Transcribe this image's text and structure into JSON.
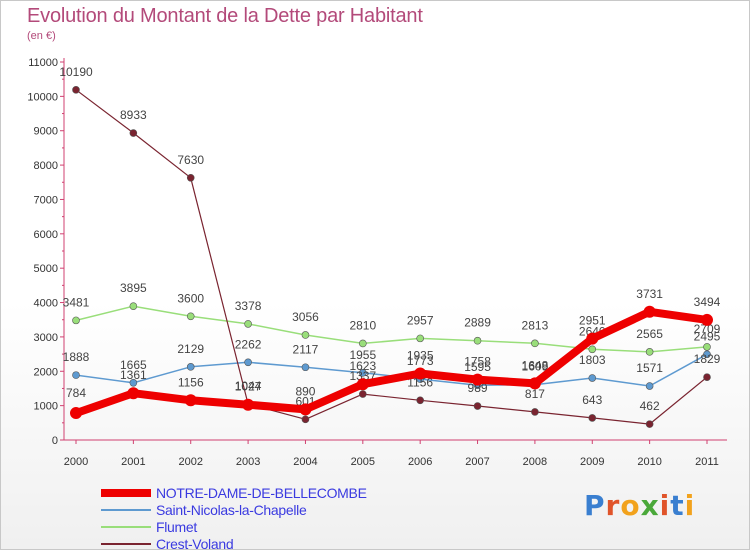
{
  "title": "Evolution du Montant de la Dette par Habitant",
  "subtitle": "(en €)",
  "logo": {
    "text": "Proxiti",
    "colors": [
      "#3a7fd0",
      "#e0542a",
      "#f2a21c",
      "#4aa83a",
      "#e0542a",
      "#3a7fd0",
      "#f2a21c"
    ]
  },
  "chart_data": {
    "type": "line",
    "title": "Evolution du Montant de la Dette par Habitant",
    "subtitle": "(en €)",
    "x": [
      "2000",
      "2001",
      "2002",
      "2003",
      "2004",
      "2005",
      "2006",
      "2007",
      "2008",
      "2009",
      "2010",
      "2011"
    ],
    "ylim": [
      0,
      11000
    ],
    "yticks": [
      "0",
      "1000",
      "2000",
      "3000",
      "4000",
      "5000",
      "6000",
      "7000",
      "8000",
      "9000",
      "10000",
      "11000"
    ],
    "grid": false,
    "legend_position": "bottom-left",
    "series": [
      {
        "name": "NOTRE-DAME-DE-BELLECOMBE",
        "color": "#ee0000",
        "values": [
          784,
          1361,
          1156,
          1027,
          890,
          1623,
          1935,
          1758,
          1648,
          2951,
          3731,
          3494
        ],
        "labels": [
          "784",
          "1361",
          "1156",
          "1027",
          "890",
          "1623",
          "1935",
          "1758",
          "1648",
          "2951",
          "3731",
          "3494"
        ]
      },
      {
        "name": "Saint-Nicolas-la-Chapelle",
        "color": "#5e9ad0",
        "values": [
          1888,
          1665,
          2129,
          2262,
          2117,
          1955,
          1773,
          1595,
          1609,
          1803,
          1571,
          2495
        ],
        "labels": [
          "1888",
          "1665",
          "2129",
          "2262",
          "2117",
          "1955",
          "1773",
          "1595",
          "1609",
          "1803",
          "1571",
          "2495"
        ]
      },
      {
        "name": "Flumet",
        "color": "#99de7a",
        "values": [
          3481,
          3895,
          3600,
          3378,
          3056,
          2810,
          2957,
          2889,
          2813,
          2640,
          2565,
          2709
        ],
        "labels": [
          "3481",
          "3895",
          "3600",
          "3378",
          "3056",
          "2810",
          "2957",
          "2889",
          "2813",
          "2640",
          "2565",
          "2709"
        ]
      },
      {
        "name": "Crest-Voland",
        "color": "#7a2430",
        "values": [
          10190,
          8933,
          7630,
          1044,
          601,
          1337,
          1156,
          989,
          817,
          643,
          462,
          1829
        ],
        "labels": [
          "10190",
          "8933",
          "7630",
          "1044",
          "601",
          "1337",
          "1156",
          "989",
          "817",
          "643",
          "462",
          "1829"
        ]
      }
    ]
  }
}
